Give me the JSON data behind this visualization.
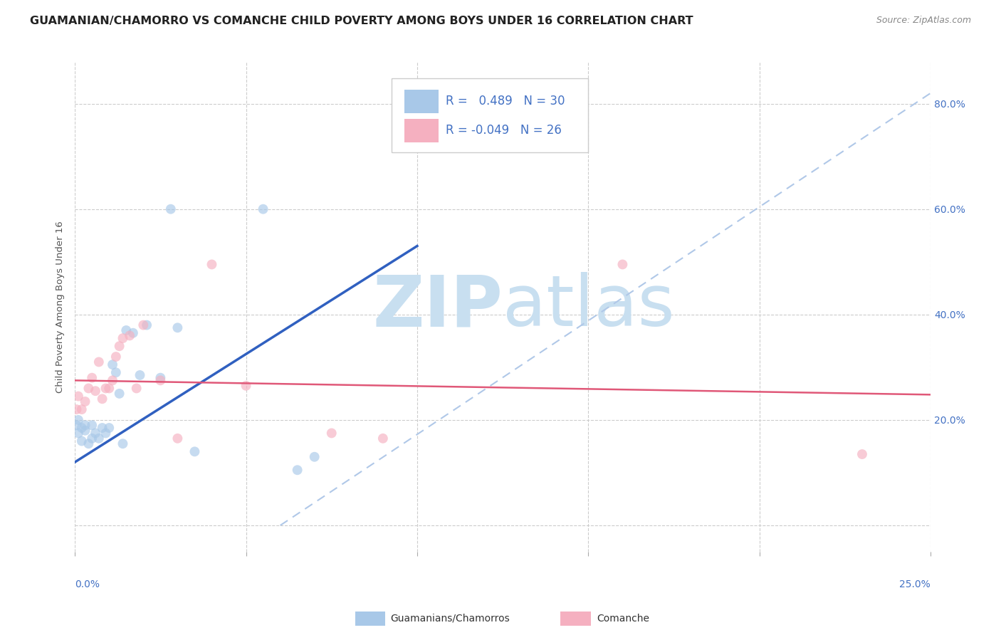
{
  "title": "GUAMANIAN/CHAMORRO VS COMANCHE CHILD POVERTY AMONG BOYS UNDER 16 CORRELATION CHART",
  "source": "Source: ZipAtlas.com",
  "ylabel": "Child Poverty Among Boys Under 16",
  "xlim": [
    0.0,
    0.25
  ],
  "ylim": [
    -0.05,
    0.88
  ],
  "guamanian_R": 0.489,
  "guamanian_N": 30,
  "comanche_R": -0.049,
  "comanche_N": 26,
  "guamanian_color": "#a8c8e8",
  "comanche_color": "#f5b0c0",
  "guamanian_line_color": "#3060c0",
  "comanche_line_color": "#e05878",
  "dashed_line_color": "#b0c8e8",
  "background_color": "#ffffff",
  "watermark_zip": "ZIP",
  "watermark_atlas": "atlas",
  "watermark_color": "#c8dff0",
  "guamanian_points_x": [
    0.0005,
    0.001,
    0.001,
    0.002,
    0.002,
    0.003,
    0.003,
    0.004,
    0.005,
    0.005,
    0.006,
    0.007,
    0.008,
    0.009,
    0.01,
    0.011,
    0.012,
    0.013,
    0.014,
    0.015,
    0.017,
    0.019,
    0.021,
    0.025,
    0.028,
    0.03,
    0.035,
    0.055,
    0.065,
    0.07
  ],
  "guamanian_points_y": [
    0.19,
    0.2,
    0.175,
    0.16,
    0.185,
    0.18,
    0.19,
    0.155,
    0.165,
    0.19,
    0.175,
    0.165,
    0.185,
    0.175,
    0.185,
    0.305,
    0.29,
    0.25,
    0.155,
    0.37,
    0.365,
    0.285,
    0.38,
    0.28,
    0.6,
    0.375,
    0.14,
    0.6,
    0.105,
    0.13
  ],
  "comanche_points_x": [
    0.0005,
    0.001,
    0.002,
    0.003,
    0.004,
    0.005,
    0.006,
    0.007,
    0.008,
    0.009,
    0.01,
    0.011,
    0.012,
    0.013,
    0.014,
    0.016,
    0.018,
    0.02,
    0.025,
    0.03,
    0.04,
    0.05,
    0.075,
    0.09,
    0.16,
    0.23
  ],
  "comanche_points_y": [
    0.22,
    0.245,
    0.22,
    0.235,
    0.26,
    0.28,
    0.255,
    0.31,
    0.24,
    0.26,
    0.26,
    0.275,
    0.32,
    0.34,
    0.355,
    0.36,
    0.26,
    0.38,
    0.275,
    0.165,
    0.495,
    0.265,
    0.175,
    0.165,
    0.495,
    0.135
  ],
  "guamanian_line_x0": 0.0,
  "guamanian_line_y0": 0.12,
  "guamanian_line_x1": 0.1,
  "guamanian_line_y1": 0.53,
  "comanche_line_x0": 0.0,
  "comanche_line_y0": 0.275,
  "comanche_line_x1": 0.25,
  "comanche_line_y1": 0.248,
  "dashed_line_x0": 0.06,
  "dashed_line_y0": 0.0,
  "dashed_line_x1": 0.25,
  "dashed_line_y1": 0.82,
  "title_fontsize": 11.5,
  "axis_label_fontsize": 9.5,
  "tick_fontsize": 10,
  "marker_size": 100,
  "marker_alpha": 0.65
}
